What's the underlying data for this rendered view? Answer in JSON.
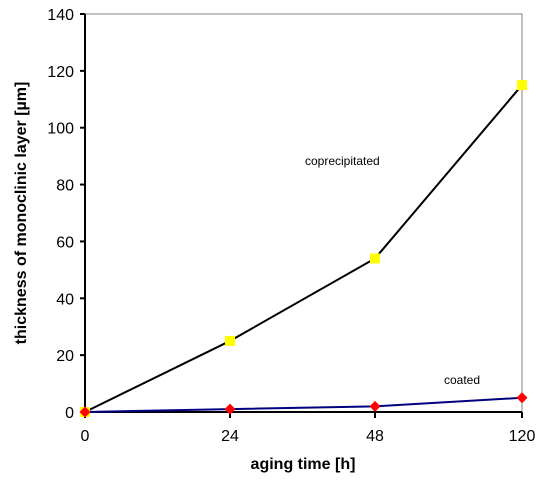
{
  "chart_data": {
    "type": "line",
    "title": "",
    "xlabel": "aging time [h]",
    "ylabel": "thickness of monoclinic layer [µm]",
    "categories": [
      "0",
      "24",
      "48",
      "120"
    ],
    "ylim": [
      0,
      140
    ],
    "yticks": [
      0,
      20,
      40,
      60,
      80,
      100,
      120,
      140
    ],
    "grid": false,
    "legend": "none",
    "series": [
      {
        "name": "coprecipitated",
        "values": [
          0,
          25,
          54,
          115
        ],
        "line_color": "#000000",
        "marker": "square",
        "marker_color": "#ffff00"
      },
      {
        "name": "coated",
        "values": [
          0,
          1,
          2,
          5
        ],
        "line_color": "#000080",
        "marker": "diamond",
        "marker_color": "#ff0000"
      }
    ],
    "annotations": [
      {
        "text": "coprecipitated",
        "series": 0,
        "near_value": 80
      },
      {
        "text": "coated",
        "series": 1,
        "near_value": 10
      }
    ]
  }
}
